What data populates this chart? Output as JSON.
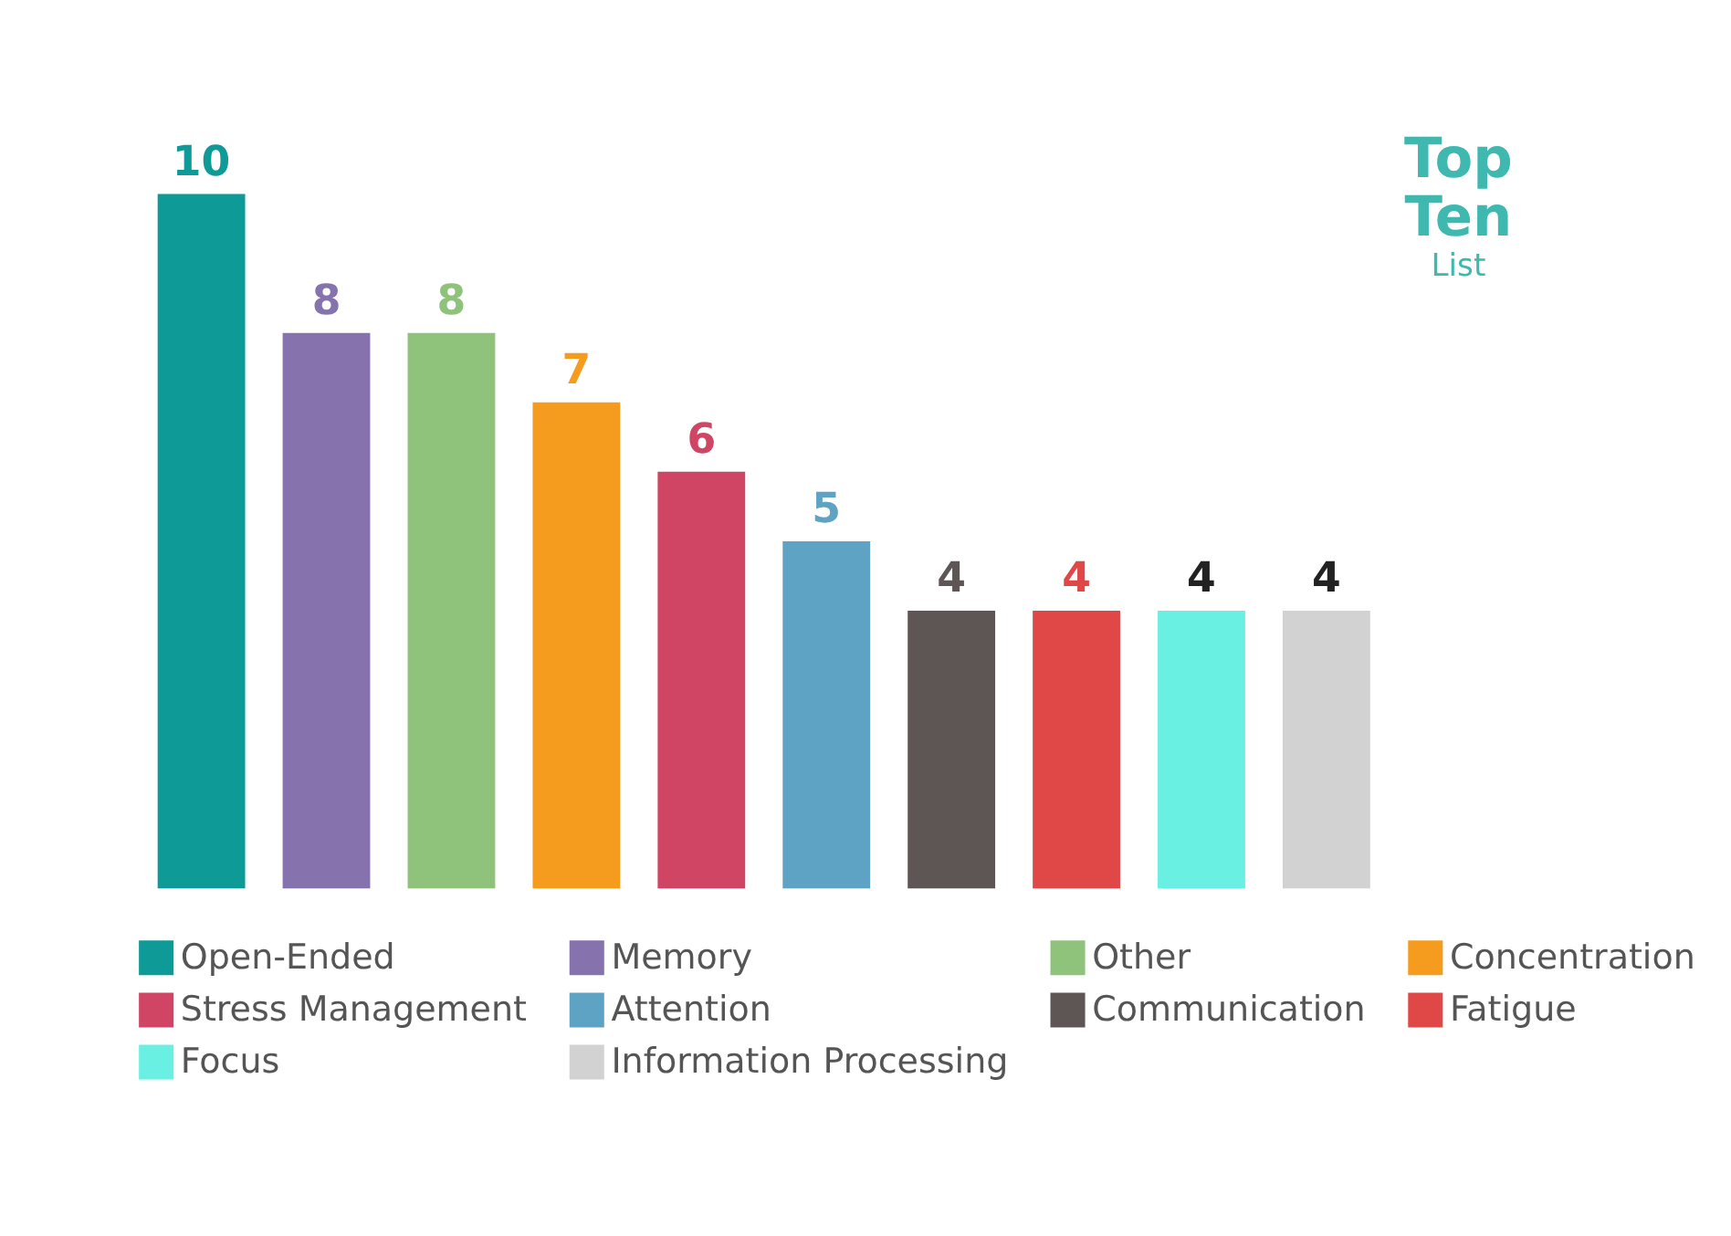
{
  "chart_data": {
    "type": "bar",
    "stacked": true,
    "categories": [
      null,
      null,
      null,
      null,
      null,
      null,
      null,
      null,
      null,
      null
    ],
    "series": [
      {
        "name": "Open-Ended",
        "color": "#0e9a97",
        "values": [
          10,
          null,
          null,
          null,
          null,
          null,
          null,
          null,
          null,
          null
        ]
      },
      {
        "name": "Memory",
        "color": "#8673ad",
        "values": [
          null,
          8,
          null,
          null,
          null,
          null,
          null,
          null,
          null,
          null
        ]
      },
      {
        "name": "Other",
        "color": "#8fc27a",
        "values": [
          null,
          null,
          8,
          null,
          null,
          null,
          null,
          null,
          null,
          null
        ]
      },
      {
        "name": "Concentration",
        "color": "#f59c1e",
        "values": [
          null,
          null,
          null,
          7,
          null,
          null,
          null,
          null,
          null,
          null
        ]
      },
      {
        "name": "Stress Management",
        "color": "#d04563",
        "values": [
          null,
          null,
          null,
          null,
          6,
          null,
          null,
          null,
          null,
          null
        ]
      },
      {
        "name": "Attention",
        "color": "#5fa3c4",
        "values": [
          null,
          null,
          null,
          null,
          null,
          5,
          null,
          null,
          null,
          null
        ]
      },
      {
        "name": "Communication",
        "color": "#5e5654",
        "values": [
          null,
          null,
          null,
          null,
          null,
          null,
          4,
          null,
          null,
          null
        ]
      },
      {
        "name": "Fatigue",
        "color": "#e04848",
        "values": [
          null,
          null,
          null,
          null,
          null,
          null,
          null,
          4,
          null,
          null
        ]
      },
      {
        "name": "Focus",
        "color": "#6af0e2",
        "values": [
          null,
          null,
          null,
          null,
          null,
          null,
          null,
          null,
          4,
          null
        ]
      },
      {
        "name": "Information Processing",
        "color": "#d2d2d2",
        "values": [
          null,
          null,
          null,
          null,
          null,
          null,
          null,
          null,
          null,
          4
        ]
      }
    ],
    "data_labels": true,
    "legend": "bottom",
    "tick_labels": false,
    "annotations": [
      "Top",
      "Ten",
      "List"
    ]
  }
}
